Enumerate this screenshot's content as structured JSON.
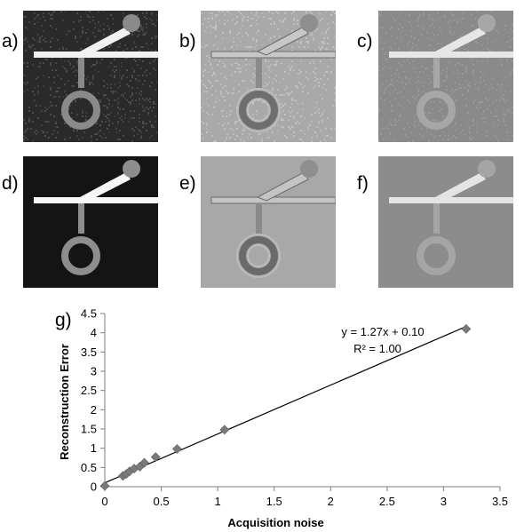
{
  "panels": [
    {
      "label": "a)",
      "style": "noisy",
      "bg": "#2a2a2a",
      "noise_color": "#555555",
      "shape_color": "#f2f2f2",
      "circle_color": "#8a8a8a"
    },
    {
      "label": "b)",
      "style": "edge",
      "bg": "#a9a9a9",
      "noise_color": "#c6c6c6",
      "shape_color": "#c8c8c8",
      "circle_color": "#6e6e6e"
    },
    {
      "label": "c)",
      "style": "faint",
      "bg": "#8a8a8a",
      "noise_color": "#9a9a9a",
      "shape_color": "#e6e6e6",
      "circle_color": "#a7a7a7"
    },
    {
      "label": "d)",
      "style": "clean",
      "bg": "#141414",
      "noise_color": "#141414",
      "shape_color": "#f7f7f7",
      "circle_color": "#8d8d8d"
    },
    {
      "label": "e)",
      "style": "edge",
      "bg": "#a8a8a8",
      "noise_color": "#a8a8a8",
      "shape_color": "#c4c4c4",
      "circle_color": "#6a6a6a"
    },
    {
      "label": "f)",
      "style": "faint",
      "bg": "#8c8c8c",
      "noise_color": "#8c8c8c",
      "shape_color": "#e4e4e4",
      "circle_color": "#a5a5a5"
    }
  ],
  "chart_label": "g)",
  "chart_data": {
    "type": "scatter",
    "xlabel": "Acquisition noise",
    "ylabel": "Reconstruction Error",
    "xlim": [
      0,
      3.5
    ],
    "ylim": [
      0,
      4.5
    ],
    "xticks": [
      0,
      0.5,
      1,
      1.5,
      2,
      2.5,
      3,
      3.5
    ],
    "xtick_labels": [
      "0",
      "0.5",
      "1",
      "1.5",
      "2",
      "2.5",
      "3",
      "3.5"
    ],
    "yticks": [
      0,
      0.5,
      1,
      1.5,
      2,
      2.5,
      3,
      3.5,
      4,
      4.5
    ],
    "ytick_labels": [
      "0",
      "0.5",
      "1",
      "1.5",
      "2",
      "2.5",
      "3",
      "3.5",
      "4",
      "4.5"
    ],
    "points": [
      {
        "x": 0.0,
        "y": 0.02
      },
      {
        "x": 0.16,
        "y": 0.28
      },
      {
        "x": 0.19,
        "y": 0.33
      },
      {
        "x": 0.22,
        "y": 0.4
      },
      {
        "x": 0.26,
        "y": 0.47
      },
      {
        "x": 0.31,
        "y": 0.52
      },
      {
        "x": 0.35,
        "y": 0.62
      },
      {
        "x": 0.45,
        "y": 0.77
      },
      {
        "x": 0.64,
        "y": 0.98
      },
      {
        "x": 1.06,
        "y": 1.48
      },
      {
        "x": 3.2,
        "y": 4.1
      }
    ],
    "trendline": {
      "slope": 1.27,
      "intercept": 0.1,
      "x_range": [
        0,
        3.2
      ]
    },
    "annotations": {
      "equation": "y = 1.27x + 0.10",
      "r2": "R² = 1.00"
    },
    "marker_color": "#7a7a7a",
    "line_color": "#000000",
    "grid": false,
    "legend": false
  }
}
